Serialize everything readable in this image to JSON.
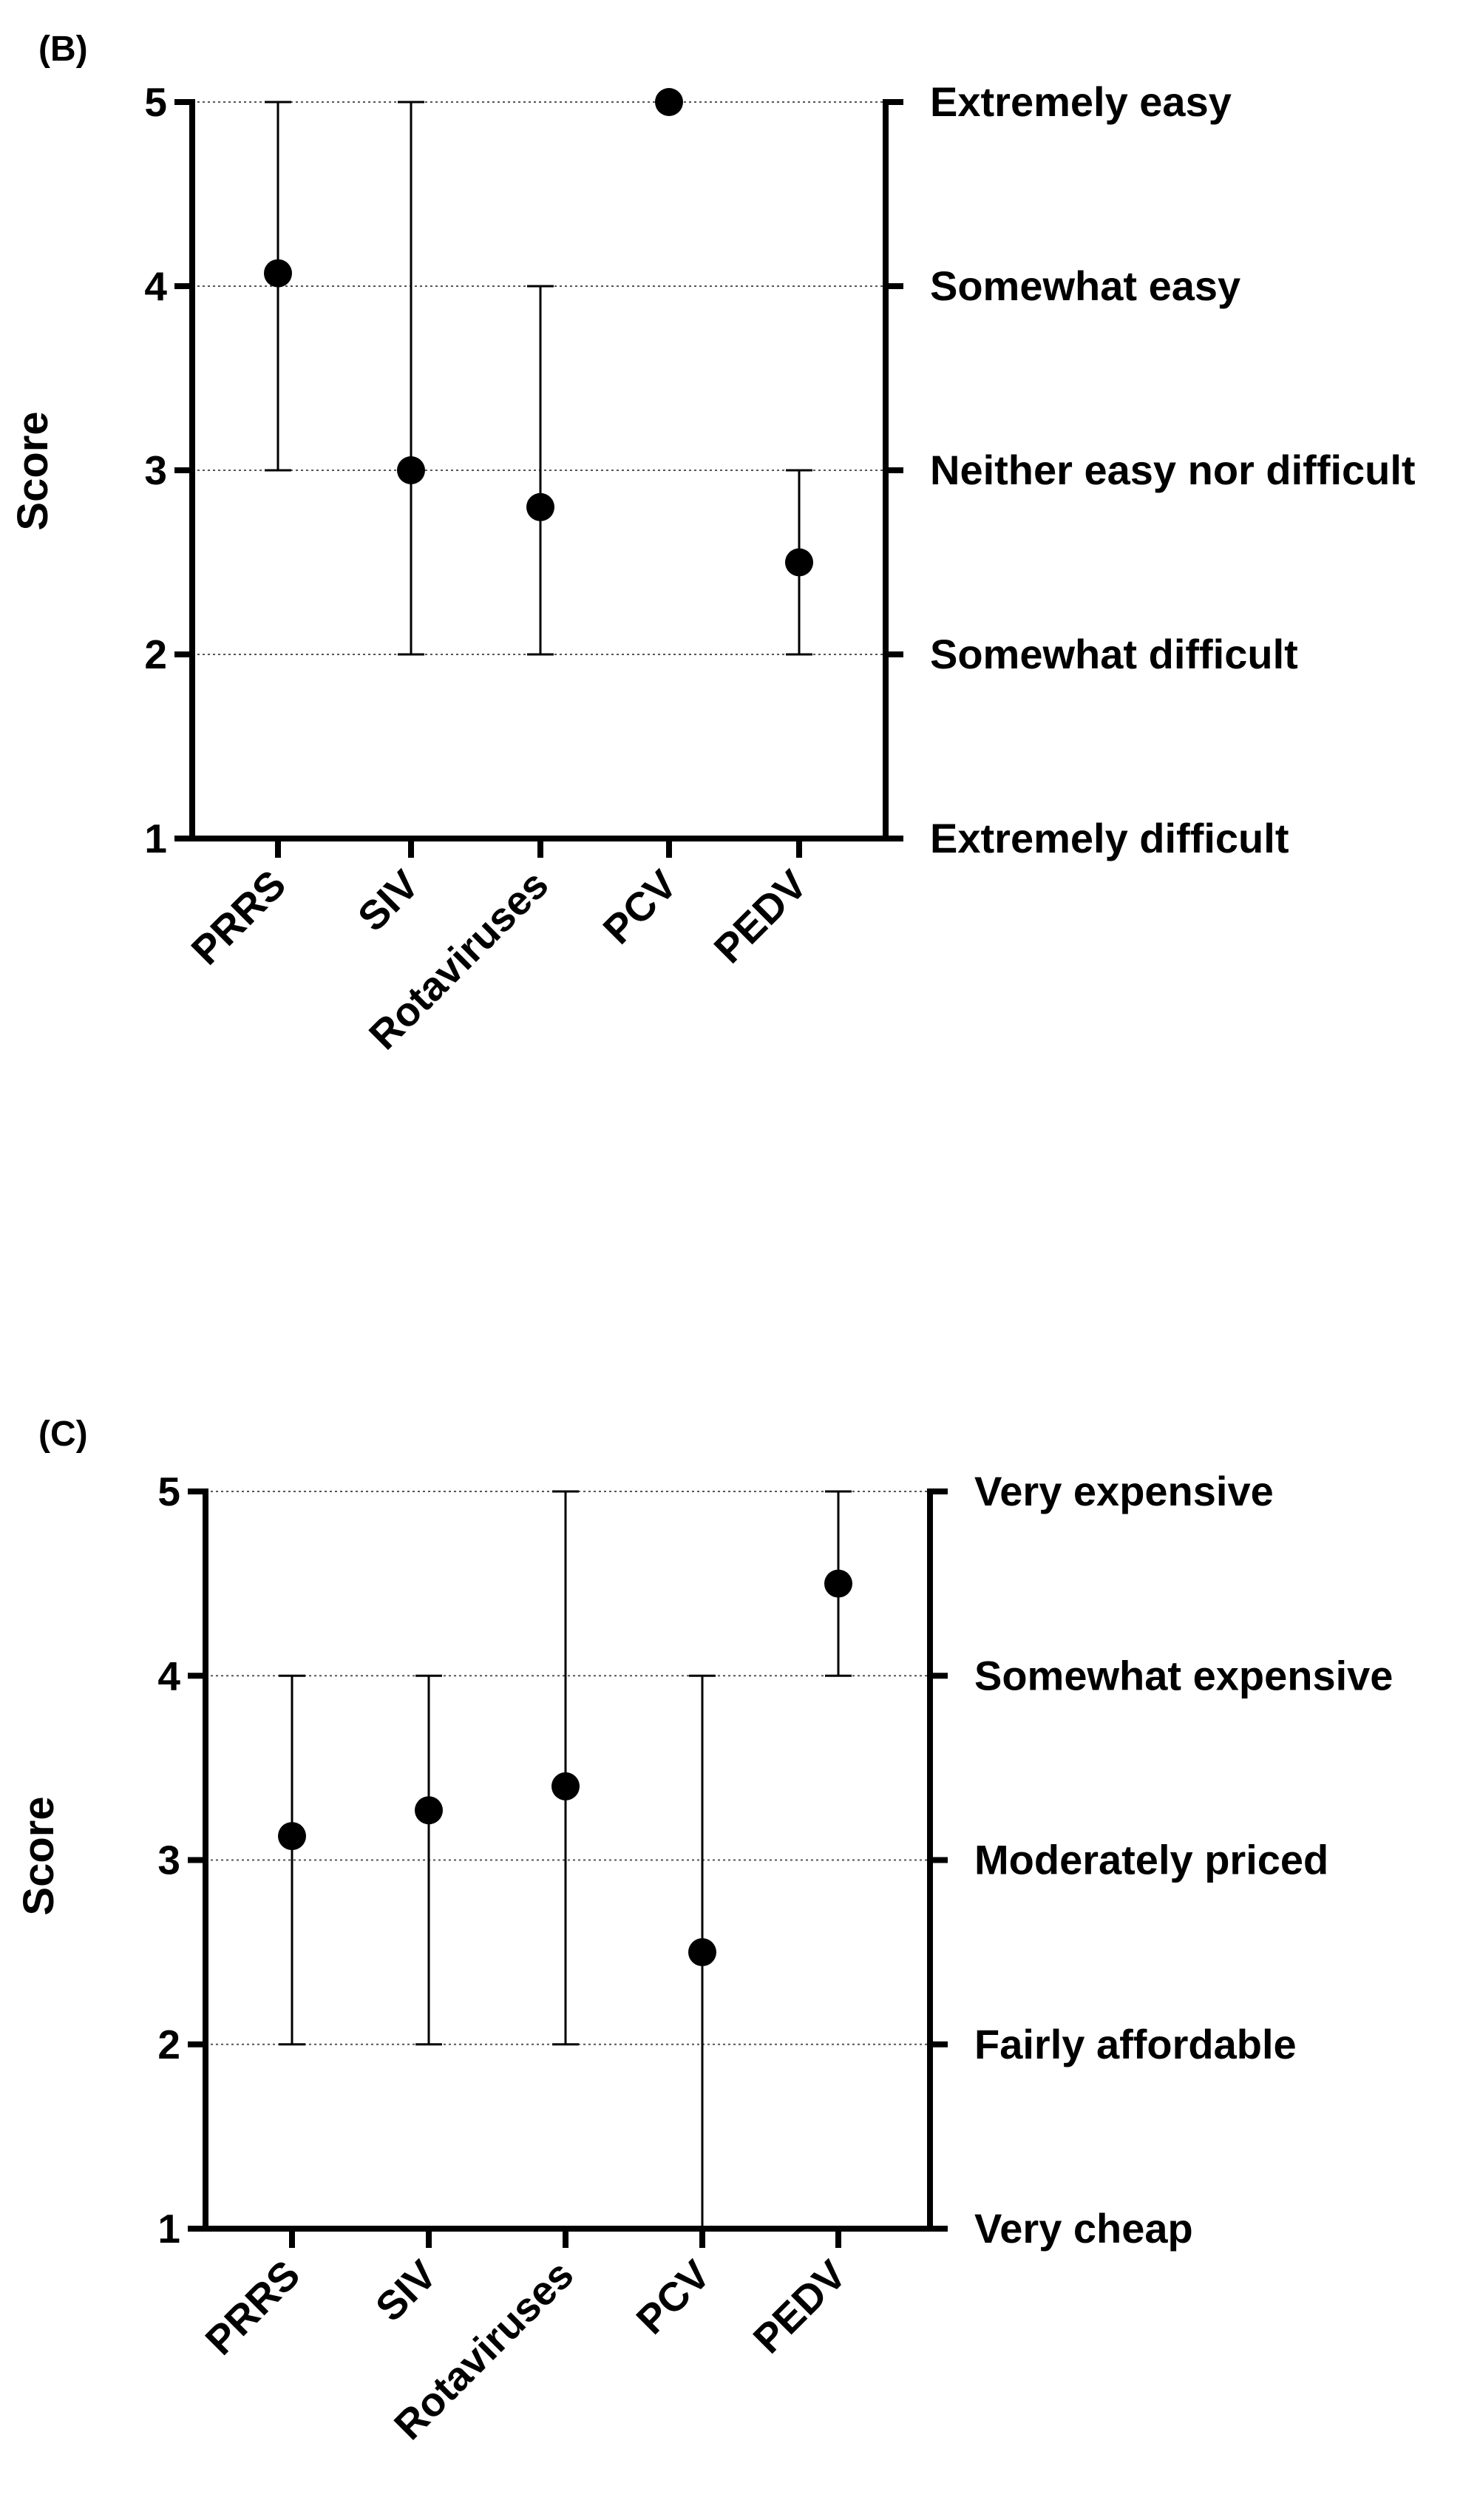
{
  "chart_data": [
    {
      "panel": "(B)",
      "type": "scatter",
      "ylabel": "Score",
      "ylim": [
        1,
        5
      ],
      "yticks": [
        1,
        2,
        3,
        4,
        5
      ],
      "grid": "dotted horizontal",
      "categories": [
        "PRRS",
        "SIV",
        "Rotaviruses",
        "PCV",
        "PEDV"
      ],
      "values": [
        4.07,
        3.0,
        2.8,
        5.0,
        2.5
      ],
      "error_low": [
        3,
        2,
        2,
        5,
        2
      ],
      "error_high": [
        5,
        5,
        4,
        5,
        3
      ],
      "right_labels": [
        "Extremely difficult",
        "Somewhat difficult",
        "Neither easy nor difficult",
        "Somewhat easy",
        "Extremely easy"
      ]
    },
    {
      "panel": "(C)",
      "type": "scatter",
      "ylabel": "Score",
      "ylim": [
        1,
        5
      ],
      "yticks": [
        1,
        2,
        3,
        4,
        5
      ],
      "grid": "dotted horizontal",
      "categories": [
        "PRRS",
        "SIV",
        "Rotaviruses",
        "PCV",
        "PEDV"
      ],
      "values": [
        3.13,
        3.27,
        3.4,
        2.5,
        4.5
      ],
      "error_low": [
        2,
        2,
        2,
        1,
        4
      ],
      "error_high": [
        4,
        4,
        5,
        4,
        5
      ],
      "right_labels": [
        "Very cheap",
        "Fairly affordable",
        "Moderately priced",
        "Somewhat expensive",
        "Very expensive"
      ]
    }
  ]
}
